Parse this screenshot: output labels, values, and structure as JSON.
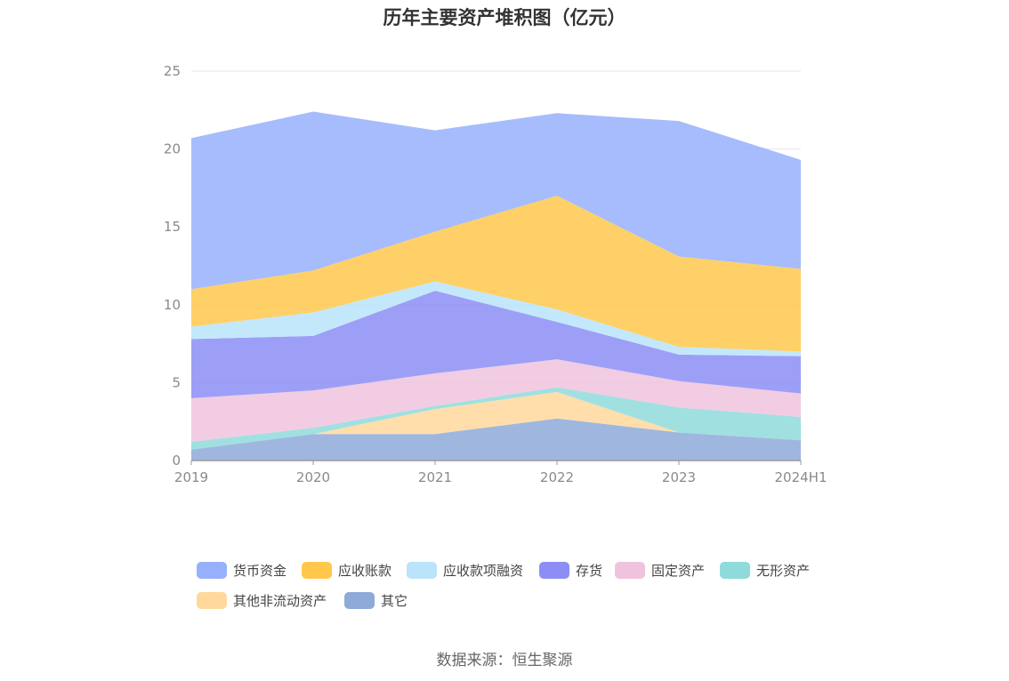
{
  "chart_data": {
    "type": "area",
    "stacked": true,
    "title": "历年主要资产堆积图（亿元）",
    "categories": [
      "2019",
      "2020",
      "2021",
      "2022",
      "2023",
      "2024H1"
    ],
    "ylim": [
      0,
      25
    ],
    "yticks": [
      "0",
      "5",
      "10",
      "15",
      "20",
      "25"
    ],
    "grid": true,
    "legend_position": "bottom",
    "series": [
      {
        "name": "其它",
        "color": "#8eaad9",
        "values": [
          0.7,
          1.7,
          1.7,
          2.7,
          1.8,
          1.3
        ]
      },
      {
        "name": "其他非流动资产",
        "color": "#ffd89c",
        "values": [
          0.0,
          0.0,
          1.6,
          1.7,
          0.0,
          0.0
        ]
      },
      {
        "name": "无形资产",
        "color": "#8fdada",
        "values": [
          0.5,
          0.4,
          0.2,
          0.3,
          1.6,
          1.5
        ]
      },
      {
        "name": "固定资产",
        "color": "#efc3de",
        "values": [
          2.8,
          2.4,
          2.1,
          1.8,
          1.7,
          1.5
        ]
      },
      {
        "name": "存货",
        "color": "#8c8ef6",
        "values": [
          3.8,
          3.5,
          5.3,
          2.4,
          1.7,
          2.4
        ]
      },
      {
        "name": "应收款项融资",
        "color": "#b9e4fa",
        "values": [
          0.8,
          1.5,
          0.6,
          0.8,
          0.5,
          0.3
        ]
      },
      {
        "name": "应收账款",
        "color": "#ffc84c",
        "values": [
          2.4,
          2.7,
          3.2,
          7.3,
          5.8,
          5.3
        ]
      },
      {
        "name": "货币资金",
        "color": "#97b0fb",
        "values": [
          9.7,
          10.2,
          6.5,
          5.3,
          8.7,
          7.0
        ]
      }
    ],
    "legend_order": [
      "货币资金",
      "应收账款",
      "应收款项融资",
      "存货",
      "固定资产",
      "无形资产",
      "其他非流动资产",
      "其它"
    ]
  },
  "source": "数据来源：恒生聚源"
}
